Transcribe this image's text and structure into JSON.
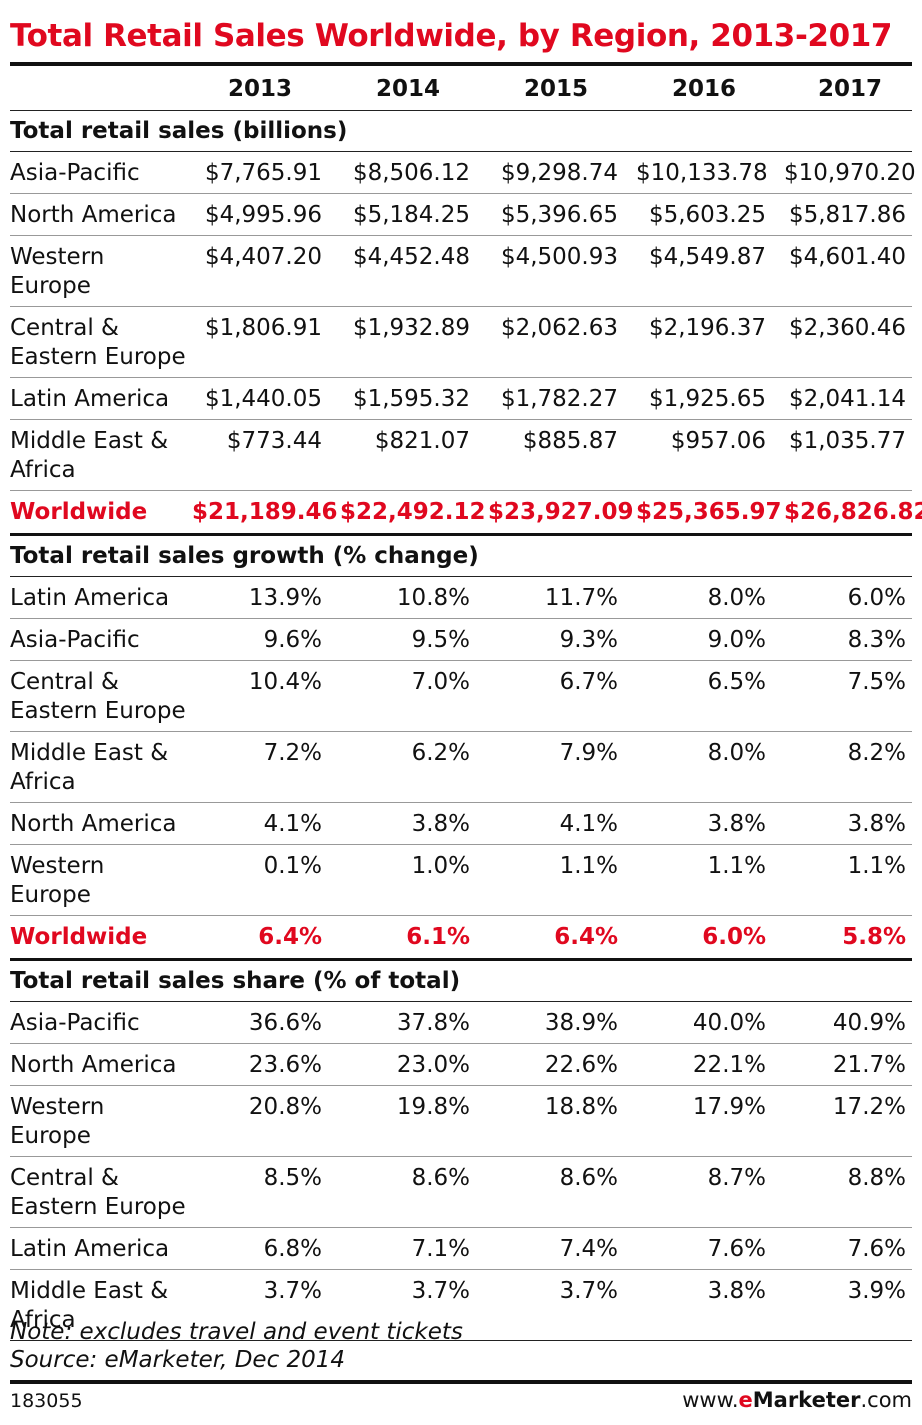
{
  "title": "Total Retail Sales Worldwide, by Region, 2013-2017",
  "years": [
    "2013",
    "2014",
    "2015",
    "2016",
    "2017"
  ],
  "sections": [
    {
      "heading": "Total retail sales (billions)",
      "rows": [
        {
          "label": "Asia-Pacific",
          "values": [
            "$7,765.91",
            "$8,506.12",
            "$9,298.74",
            "$10,133.78",
            "$10,970.20"
          ]
        },
        {
          "label": "North America",
          "values": [
            "$4,995.96",
            "$5,184.25",
            "$5,396.65",
            "$5,603.25",
            "$5,817.86"
          ]
        },
        {
          "label": "Western Europe",
          "values": [
            "$4,407.20",
            "$4,452.48",
            "$4,500.93",
            "$4,549.87",
            "$4,601.40"
          ]
        },
        {
          "label": "Central & Eastern Europe",
          "values": [
            "$1,806.91",
            "$1,932.89",
            "$2,062.63",
            "$2,196.37",
            "$2,360.46"
          ]
        },
        {
          "label": "Latin America",
          "values": [
            "$1,440.05",
            "$1,595.32",
            "$1,782.27",
            "$1,925.65",
            "$2,041.14"
          ]
        },
        {
          "label": "Middle East & Africa",
          "values": [
            "$773.44",
            "$821.07",
            "$885.87",
            "$957.06",
            "$1,035.77"
          ]
        }
      ],
      "total": {
        "label": "Worldwide",
        "values": [
          "$21,189.46",
          "$22,492.12",
          "$23,927.09",
          "$25,365.97",
          "$26,826.82"
        ]
      }
    },
    {
      "heading": "Total retail sales growth (% change)",
      "rows": [
        {
          "label": "Latin America",
          "values": [
            "13.9%",
            "10.8%",
            "11.7%",
            "8.0%",
            "6.0%"
          ]
        },
        {
          "label": "Asia-Pacific",
          "values": [
            "9.6%",
            "9.5%",
            "9.3%",
            "9.0%",
            "8.3%"
          ]
        },
        {
          "label": "Central & Eastern Europe",
          "values": [
            "10.4%",
            "7.0%",
            "6.7%",
            "6.5%",
            "7.5%"
          ]
        },
        {
          "label": "Middle East & Africa",
          "values": [
            "7.2%",
            "6.2%",
            "7.9%",
            "8.0%",
            "8.2%"
          ]
        },
        {
          "label": "North America",
          "values": [
            "4.1%",
            "3.8%",
            "4.1%",
            "3.8%",
            "3.8%"
          ]
        },
        {
          "label": "Western Europe",
          "values": [
            "0.1%",
            "1.0%",
            "1.1%",
            "1.1%",
            "1.1%"
          ]
        }
      ],
      "total": {
        "label": "Worldwide",
        "values": [
          "6.4%",
          "6.1%",
          "6.4%",
          "6.0%",
          "5.8%"
        ]
      }
    },
    {
      "heading": "Total retail sales share (% of total)",
      "rows": [
        {
          "label": "Asia-Pacific",
          "values": [
            "36.6%",
            "37.8%",
            "38.9%",
            "40.0%",
            "40.9%"
          ]
        },
        {
          "label": "North America",
          "values": [
            "23.6%",
            "23.0%",
            "22.6%",
            "22.1%",
            "21.7%"
          ]
        },
        {
          "label": "Western Europe",
          "values": [
            "20.8%",
            "19.8%",
            "18.8%",
            "17.9%",
            "17.2%"
          ]
        },
        {
          "label": "Central & Eastern Europe",
          "values": [
            "8.5%",
            "8.6%",
            "8.6%",
            "8.7%",
            "8.8%"
          ]
        },
        {
          "label": "Latin America",
          "values": [
            "6.8%",
            "7.1%",
            "7.4%",
            "7.6%",
            "7.6%"
          ]
        },
        {
          "label": "Middle East & Africa",
          "values": [
            "3.7%",
            "3.7%",
            "3.7%",
            "3.8%",
            "3.9%"
          ]
        }
      ]
    }
  ],
  "notes": {
    "note": "Note: excludes travel and event tickets",
    "source": "Source: eMarketer, Dec 2014"
  },
  "footer": {
    "id": "183055",
    "brand_prefix": "www.",
    "brand_e": "e",
    "brand_name": "Marketer",
    "brand_suffix": ".com"
  },
  "colors": {
    "accent": "#e0081f",
    "text": "#111111",
    "rule": "#111111"
  },
  "chart_data": {
    "type": "table",
    "title": "Total Retail Sales Worldwide, by Region, 2013-2017",
    "columns": [
      "2013",
      "2014",
      "2015",
      "2016",
      "2017"
    ],
    "tables": [
      {
        "name": "Total retail sales (billions)",
        "unit": "USD billions",
        "series": [
          {
            "name": "Asia-Pacific",
            "values": [
              7765.91,
              8506.12,
              9298.74,
              10133.78,
              10970.2
            ]
          },
          {
            "name": "North America",
            "values": [
              4995.96,
              5184.25,
              5396.65,
              5603.25,
              5817.86
            ]
          },
          {
            "name": "Western Europe",
            "values": [
              4407.2,
              4452.48,
              4500.93,
              4549.87,
              4601.4
            ]
          },
          {
            "name": "Central & Eastern Europe",
            "values": [
              1806.91,
              1932.89,
              2062.63,
              2196.37,
              2360.46
            ]
          },
          {
            "name": "Latin America",
            "values": [
              1440.05,
              1595.32,
              1782.27,
              1925.65,
              2041.14
            ]
          },
          {
            "name": "Middle East & Africa",
            "values": [
              773.44,
              821.07,
              885.87,
              957.06,
              1035.77
            ]
          },
          {
            "name": "Worldwide",
            "values": [
              21189.46,
              22492.12,
              23927.09,
              25365.97,
              26826.82
            ]
          }
        ]
      },
      {
        "name": "Total retail sales growth (% change)",
        "unit": "%",
        "series": [
          {
            "name": "Latin America",
            "values": [
              13.9,
              10.8,
              11.7,
              8.0,
              6.0
            ]
          },
          {
            "name": "Asia-Pacific",
            "values": [
              9.6,
              9.5,
              9.3,
              9.0,
              8.3
            ]
          },
          {
            "name": "Central & Eastern Europe",
            "values": [
              10.4,
              7.0,
              6.7,
              6.5,
              7.5
            ]
          },
          {
            "name": "Middle East & Africa",
            "values": [
              7.2,
              6.2,
              7.9,
              8.0,
              8.2
            ]
          },
          {
            "name": "North America",
            "values": [
              4.1,
              3.8,
              4.1,
              3.8,
              3.8
            ]
          },
          {
            "name": "Western Europe",
            "values": [
              0.1,
              1.0,
              1.1,
              1.1,
              1.1
            ]
          },
          {
            "name": "Worldwide",
            "values": [
              6.4,
              6.1,
              6.4,
              6.0,
              5.8
            ]
          }
        ]
      },
      {
        "name": "Total retail sales share (% of total)",
        "unit": "%",
        "series": [
          {
            "name": "Asia-Pacific",
            "values": [
              36.6,
              37.8,
              38.9,
              40.0,
              40.9
            ]
          },
          {
            "name": "North America",
            "values": [
              23.6,
              23.0,
              22.6,
              22.1,
              21.7
            ]
          },
          {
            "name": "Western Europe",
            "values": [
              20.8,
              19.8,
              18.8,
              17.9,
              17.2
            ]
          },
          {
            "name": "Central & Eastern Europe",
            "values": [
              8.5,
              8.6,
              8.6,
              8.7,
              8.8
            ]
          },
          {
            "name": "Latin America",
            "values": [
              6.8,
              7.1,
              7.4,
              7.6,
              7.6
            ]
          },
          {
            "name": "Middle East & Africa",
            "values": [
              3.7,
              3.7,
              3.7,
              3.8,
              3.9
            ]
          }
        ]
      }
    ]
  }
}
